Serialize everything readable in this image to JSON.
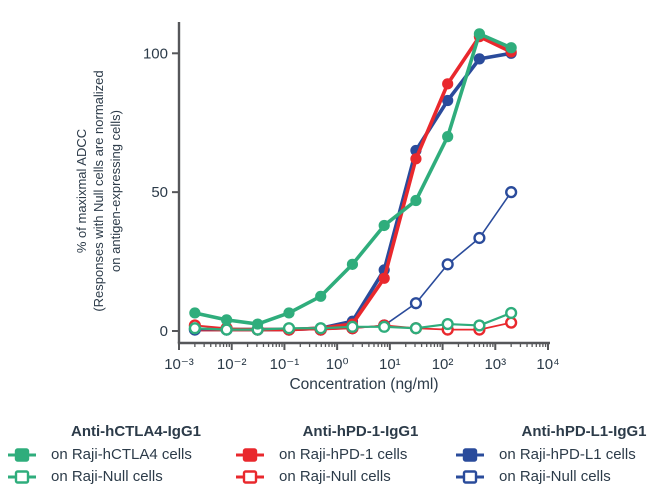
{
  "colors": {
    "green": "#2fad7c",
    "red": "#e9282d",
    "blue": "#2a4b9b",
    "text": "#2c3b49",
    "axis": "#56575a",
    "background": "#ffffff"
  },
  "chart_data": {
    "type": "line",
    "title": "",
    "xlabel": "Concentration (ng/ml)",
    "ylabel_lines": [
      "% of maxixmal ADCC",
      "(Responses with Null cells are normalized",
      "on antigen-expressing cells)"
    ],
    "x_scale": "log10",
    "xlim_exponents": [
      -3,
      4
    ],
    "x_tick_labels": [
      "10⁻³",
      "10⁻²",
      "10⁻¹",
      "10⁰",
      "10¹",
      "10²",
      "10³",
      "10⁴"
    ],
    "y_ticks": [
      0,
      50,
      100
    ],
    "ylim": [
      0,
      110
    ],
    "grid": false,
    "legend_position": "bottom",
    "x": [
      0.002,
      0.008,
      0.031,
      0.122,
      0.488,
      1.95,
      7.81,
      31.25,
      125,
      500,
      2000
    ],
    "series": [
      {
        "id": "hctla4-on-raji-hctla4",
        "antibody": "Anti-hCTLA4-IgG1",
        "label": "on Raji-hCTLA4 cells",
        "color": "#2fad7c",
        "marker": "filled-circle",
        "line_width": 3.6,
        "values": [
          6.5,
          4,
          2.5,
          6.5,
          12.5,
          24,
          38,
          47,
          70,
          107,
          102
        ]
      },
      {
        "id": "hctla4-on-raji-null",
        "antibody": "Anti-hCTLA4-IgG1",
        "label": "on Raji-Null cells",
        "color": "#2fad7c",
        "marker": "open-circle",
        "line_width": 2.2,
        "values": [
          1,
          0.5,
          0.5,
          1,
          1,
          1.5,
          1.5,
          1,
          2.5,
          2,
          6.5
        ]
      },
      {
        "id": "hpd1-on-raji-hpd1",
        "antibody": "Anti-hPD-1-IgG1",
        "label": "on Raji-hPD-1 cells",
        "color": "#e9282d",
        "marker": "filled-circle",
        "line_width": 3.6,
        "values": [
          0.5,
          0.5,
          0.5,
          0.5,
          1,
          2.5,
          19,
          62,
          89,
          106,
          100.5
        ]
      },
      {
        "id": "hpd1-on-raji-null",
        "antibody": "Anti-hPD-1-IgG1",
        "label": "on Raji-Null cells",
        "color": "#e9282d",
        "marker": "open-circle",
        "line_width": 1.8,
        "values": [
          2,
          1,
          0.5,
          0.5,
          0.5,
          1,
          2,
          1,
          0.5,
          0.5,
          3
        ]
      },
      {
        "id": "hpdl1-on-raji-hpdl1",
        "antibody": "Anti-hPD-L1-IgG1",
        "label": "on Raji-hPD-L1 cells",
        "color": "#2a4b9b",
        "marker": "filled-circle",
        "line_width": 3.6,
        "values": [
          0.5,
          0.5,
          0.5,
          0.5,
          1,
          3.5,
          22,
          65,
          83,
          98,
          100
        ]
      },
      {
        "id": "hpdl1-on-raji-null",
        "antibody": "Anti-hPD-L1-IgG1",
        "label": "on Raji-Null cells",
        "color": "#2a4b9b",
        "marker": "open-circle",
        "line_width": 1.6,
        "values": [
          0.5,
          0.5,
          0.5,
          0.5,
          0.5,
          1,
          2,
          10,
          24,
          33.5,
          50
        ]
      }
    ]
  },
  "legend": {
    "groups": [
      {
        "title": "Anti-hCTLA4-IgG1",
        "color": "#2fad7c",
        "items": [
          {
            "label": "on Raji-hCTLA4 cells",
            "symbol": "filled-square-on-line"
          },
          {
            "label": "on Raji-Null cells",
            "symbol": "open-square-on-line"
          }
        ]
      },
      {
        "title": "Anti-hPD-1-IgG1",
        "color": "#e9282d",
        "items": [
          {
            "label": "on Raji-hPD-1 cells",
            "symbol": "filled-square-on-line"
          },
          {
            "label": "on Raji-Null cells",
            "symbol": "open-square-on-line"
          }
        ]
      },
      {
        "title": "Anti-hPD-L1-IgG1",
        "color": "#2a4b9b",
        "items": [
          {
            "label": "on Raji-hPD-L1 cells",
            "symbol": "filled-square-on-line"
          },
          {
            "label": "on Raji-Null cells",
            "symbol": "open-square-on-line"
          }
        ]
      }
    ]
  }
}
